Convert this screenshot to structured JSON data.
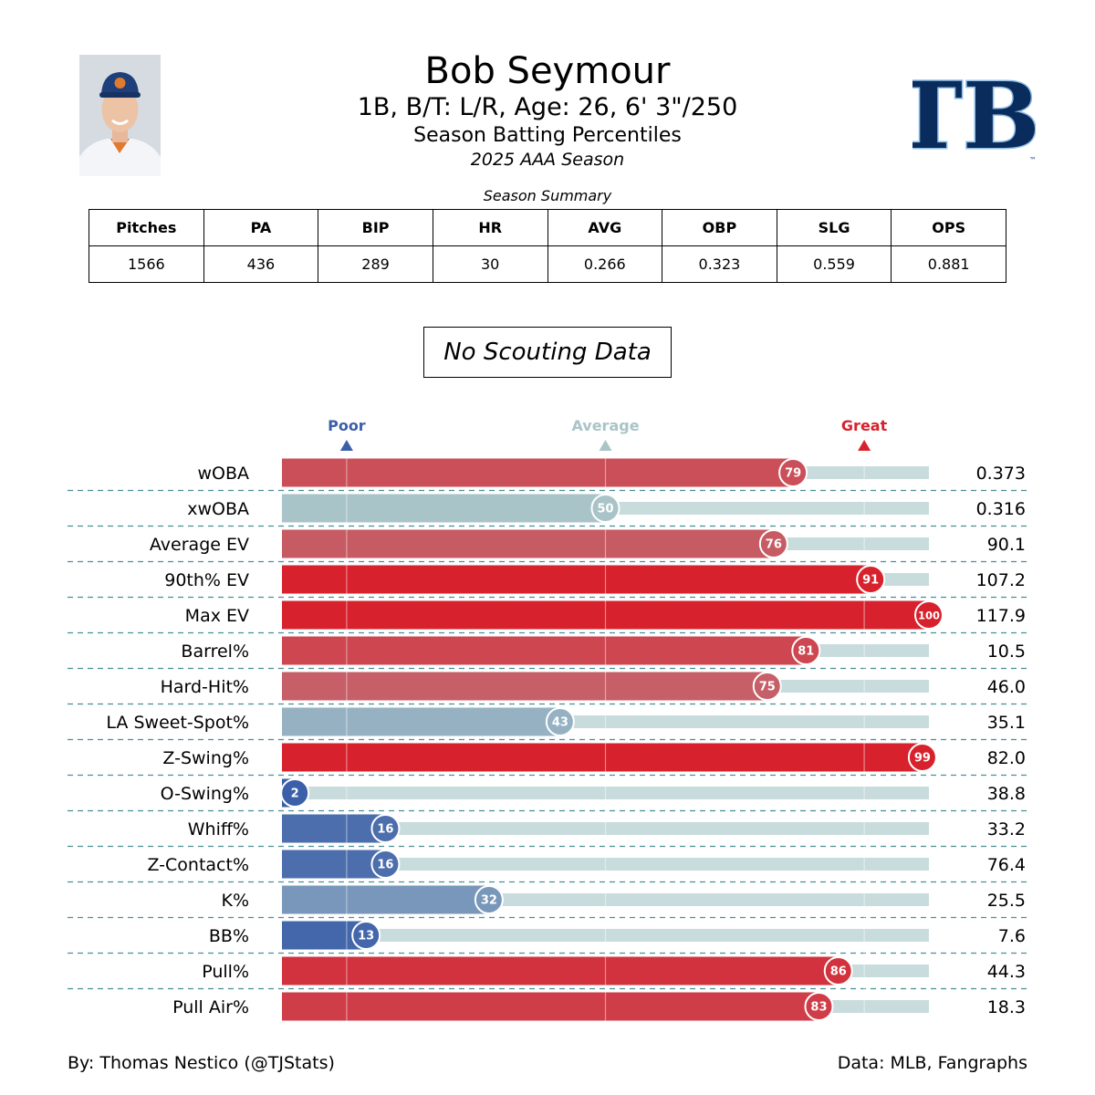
{
  "header": {
    "player_name": "Bob Seymour",
    "player_info": "1B, B/T: L/R, Age: 26, 6' 3\"/250",
    "subtitle": "Season Batting Percentiles",
    "season": "2025 AAA Season",
    "team_logo_text": "TB",
    "team_logo_mark": "™"
  },
  "summary": {
    "title": "Season Summary",
    "headers": [
      "Pitches",
      "PA",
      "BIP",
      "HR",
      "AVG",
      "OBP",
      "SLG",
      "OPS"
    ],
    "values": [
      "1566",
      "436",
      "289",
      "30",
      "0.266",
      "0.323",
      "0.559",
      "0.881"
    ]
  },
  "scouting": {
    "text": "No Scouting Data"
  },
  "footer": {
    "credit": "By: Thomas Nestico (@TJStats)",
    "source": "Data: MLB, Fangraphs"
  },
  "colors": {
    "poor": "#3b5fa8",
    "average": "#a9c4c8",
    "great": "#d7222d",
    "track": "#c9dcdd",
    "divider": "#4a8f96"
  },
  "chart_data": {
    "type": "bar",
    "orientation": "horizontal",
    "xlim": [
      0,
      100
    ],
    "markers": [
      {
        "label": "Poor",
        "value": 10,
        "color": "#3b5fa8"
      },
      {
        "label": "Average",
        "value": 50,
        "color": "#a9c4c8"
      },
      {
        "label": "Great",
        "value": 90,
        "color": "#d7222d"
      }
    ],
    "categories": [
      "wOBA",
      "xwOBA",
      "Average EV",
      "90th% EV",
      "Max EV",
      "Barrel%",
      "Hard-Hit%",
      "LA Sweet-Spot%",
      "Z-Swing%",
      "O-Swing%",
      "Whiff%",
      "Z-Contact%",
      "K%",
      "BB%",
      "Pull%",
      "Pull Air%"
    ],
    "percentiles": [
      79,
      50,
      76,
      91,
      100,
      81,
      75,
      43,
      99,
      2,
      16,
      16,
      32,
      13,
      86,
      83
    ],
    "stat_values": [
      "0.373",
      "0.316",
      "90.1",
      "107.2",
      "117.9",
      "10.5",
      "46.0",
      "35.1",
      "82.0",
      "38.8",
      "33.2",
      "76.4",
      "25.5",
      "7.6",
      "44.3",
      "18.3"
    ]
  }
}
